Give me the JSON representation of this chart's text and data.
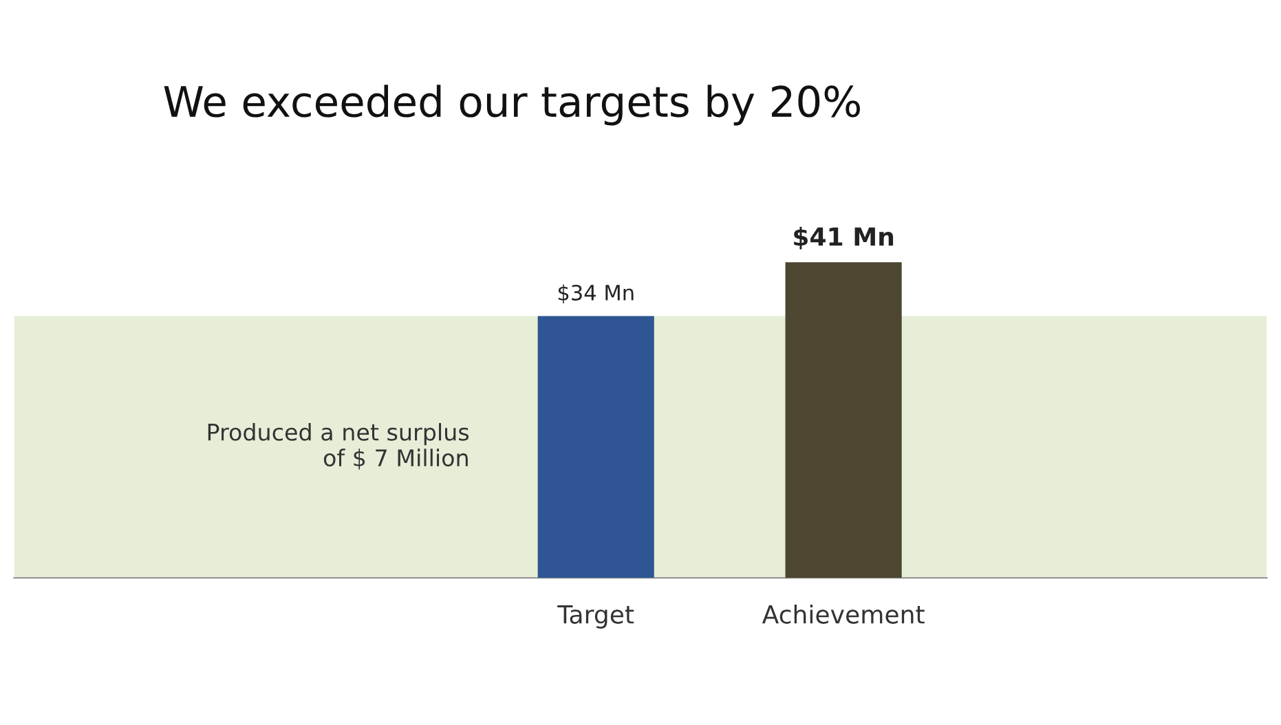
{
  "chart_data": {
    "type": "bar",
    "title": "We exceeded our targets by 20%",
    "categories": [
      "Target",
      "Achievement"
    ],
    "series": [
      {
        "colors": [
          "#2f5594",
          "#4d4630"
        ],
        "values": [
          34,
          41
        ],
        "value_labels": [
          "$34 Mn",
          "$41 Mn"
        ]
      }
    ],
    "bands": [
      {
        "axis": "y",
        "from": 0,
        "to": 34,
        "label": "Produced a net surplus\nof $ 7 Million",
        "color": "#e6eed8"
      }
    ]
  }
}
